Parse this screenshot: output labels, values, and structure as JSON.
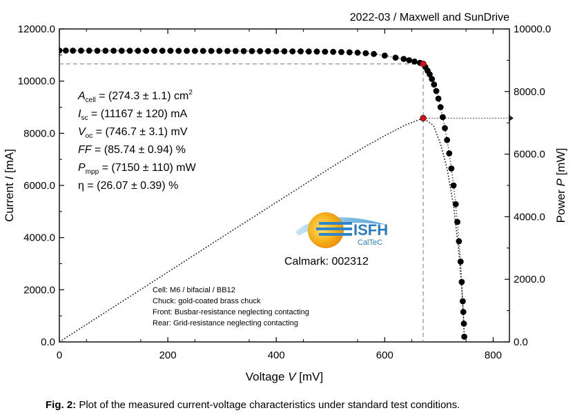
{
  "chart_data": {
    "type": "line",
    "header": "2022-03 / Maxwell and SunDrive",
    "xlabel": "Voltage",
    "xlabel_symbol": "V",
    "xlabel_unit": "[mV]",
    "ylabel_left": "Current",
    "ylabel_left_symbol": "I",
    "ylabel_left_unit": "[mA]",
    "ylabel_right": "Power",
    "ylabel_right_symbol": "P",
    "ylabel_right_unit": "[mW]",
    "xlim": [
      0,
      830
    ],
    "ylim_left": [
      0,
      12000
    ],
    "ylim_right": [
      0,
      10000
    ],
    "x_ticks": [
      "0",
      "200",
      "400",
      "600",
      "800"
    ],
    "y_left_ticks": [
      "0.0",
      "2000.0",
      "4000.0",
      "6000.0",
      "8000.0",
      "10000.0",
      "12000.0"
    ],
    "y_right_ticks": [
      "0.0",
      "2000.0",
      "4000.0",
      "6000.0",
      "8000.0",
      "10000.0"
    ],
    "params": {
      "Isc_mA": 11167,
      "Voc_mV": 746.7,
      "FF_percent": 85.74,
      "Pmpp_mW": 7150,
      "Vmpp_mV": 671,
      "Impp_mA": 10660
    },
    "series": [
      {
        "name": "Current I (measured)",
        "axis": "left",
        "points": [
          [
            0,
            11170
          ],
          [
            12,
            11169
          ],
          [
            25,
            11168
          ],
          [
            40,
            11168
          ],
          [
            55,
            11167
          ],
          [
            70,
            11166
          ],
          [
            85,
            11166
          ],
          [
            100,
            11165
          ],
          [
            115,
            11165
          ],
          [
            130,
            11164
          ],
          [
            145,
            11163
          ],
          [
            160,
            11163
          ],
          [
            175,
            11162
          ],
          [
            190,
            11161
          ],
          [
            205,
            11161
          ],
          [
            220,
            11160
          ],
          [
            235,
            11159
          ],
          [
            250,
            11158
          ],
          [
            265,
            11157
          ],
          [
            280,
            11157
          ],
          [
            295,
            11156
          ],
          [
            310,
            11155
          ],
          [
            325,
            11154
          ],
          [
            340,
            11152
          ],
          [
            355,
            11151
          ],
          [
            370,
            11150
          ],
          [
            385,
            11148
          ],
          [
            400,
            11146
          ],
          [
            415,
            11144
          ],
          [
            430,
            11142
          ],
          [
            445,
            11140
          ],
          [
            460,
            11137
          ],
          [
            475,
            11133
          ],
          [
            490,
            11128
          ],
          [
            505,
            11122
          ],
          [
            520,
            11114
          ],
          [
            535,
            11103
          ],
          [
            550,
            11090
          ],
          [
            565,
            11070
          ],
          [
            580,
            11040
          ],
          [
            600,
            10980
          ],
          [
            620,
            10900
          ],
          [
            635,
            10850
          ],
          [
            645,
            10800
          ],
          [
            655,
            10750
          ],
          [
            665,
            10700
          ],
          [
            671,
            10660
          ],
          [
            675,
            10540
          ],
          [
            679,
            10400
          ],
          [
            683,
            10260
          ],
          [
            687,
            10080
          ],
          [
            691,
            9870
          ],
          [
            695,
            9620
          ],
          [
            699,
            9330
          ],
          [
            703,
            9000
          ],
          [
            707,
            8620
          ],
          [
            711,
            8200
          ],
          [
            715,
            7740
          ],
          [
            719,
            7230
          ],
          [
            723,
            6650
          ],
          [
            727,
            6000
          ],
          [
            731,
            5280
          ],
          [
            734,
            4600
          ],
          [
            737,
            3860
          ],
          [
            740,
            3080
          ],
          [
            742,
            2300
          ],
          [
            744,
            1560
          ],
          [
            745,
            1150
          ],
          [
            746,
            700
          ],
          [
            746.7,
            200
          ]
        ]
      },
      {
        "name": "Power P",
        "axis": "right",
        "points": [
          [
            0,
            0
          ],
          [
            100,
            1117
          ],
          [
            200,
            2232
          ],
          [
            300,
            3347
          ],
          [
            400,
            4458
          ],
          [
            500,
            5564
          ],
          [
            560,
            6202
          ],
          [
            600,
            6588
          ],
          [
            640,
            6944
          ],
          [
            671,
            7150
          ],
          [
            690,
            6915
          ],
          [
            703,
            6327
          ],
          [
            715,
            5534
          ],
          [
            727,
            4362
          ],
          [
            737,
            2846
          ],
          [
            742,
            1707
          ],
          [
            745,
            857
          ],
          [
            746.7,
            149
          ]
        ]
      }
    ],
    "mpp_markers": [
      {
        "name": "MPP on I-V curve",
        "x": 671,
        "y": 10660,
        "axis": "left"
      },
      {
        "name": "MPP on P-V curve",
        "x": 671,
        "y": 7150,
        "axis": "right"
      }
    ],
    "annotations": {
      "parameters": [
        {
          "sym": "A",
          "sub": "cell",
          "text": " = (274.3 ± 1.1) cm",
          "sup": "2"
        },
        {
          "sym": "I",
          "sub": "sc",
          "text": " = (11167 ± 120) mA",
          "sup": ""
        },
        {
          "sym": "V",
          "sub": "oc",
          "text": " = (746.7 ± 3.1) mV",
          "sup": ""
        },
        {
          "sym": "FF",
          "sub": "",
          "text": " = (85.74 ± 0.94) %",
          "sup": ""
        },
        {
          "sym": "P",
          "sub": "mpp",
          "text": " = (7150 ± 110) mW",
          "sup": ""
        },
        {
          "sym": "η",
          "sub": "",
          "text": " = (26.07 ± 0.39) %",
          "sup": ""
        }
      ],
      "notes": [
        "Cell: M6 / bifacial / BB12",
        "Chuck: gold-coated brass chuck",
        "Front: Busbar-resistance neglecting contacting",
        "Rear: Grid-resistance neglecting contacting"
      ],
      "logo_text": "ISFH",
      "logo_subtext": "CalTeC",
      "calmark": "Calmark: 002312"
    },
    "caption_label": "Fig. 2:",
    "caption_text": " Plot of the measured current-voltage characteristics under standard test conditions."
  }
}
